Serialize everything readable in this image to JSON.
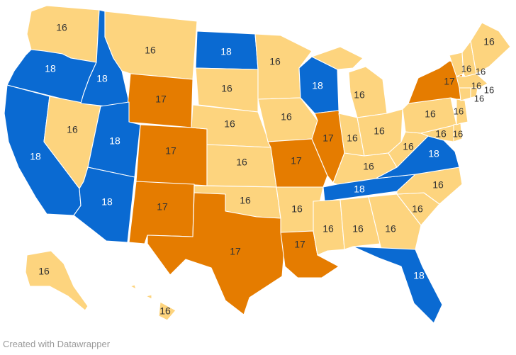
{
  "credit": "Created with Datawrapper",
  "colors": {
    "16": "#fdd47e",
    "17": "#e57c00",
    "18": "#0a6ad2"
  },
  "states": {
    "WA": "16",
    "OR": "18",
    "CA": "18",
    "NV": "16",
    "ID": "18",
    "MT": "16",
    "WY": "17",
    "UT": "18",
    "AZ": "18",
    "CO": "17",
    "NM": "17",
    "ND": "18",
    "SD": "16",
    "NE": "16",
    "KS": "16",
    "OK": "16",
    "TX": "17",
    "MN": "16",
    "IA": "16",
    "MO": "17",
    "AR": "16",
    "LA": "17",
    "WI": "18",
    "IL": "17",
    "MI": "16",
    "IN": "16",
    "OH": "16",
    "KY": "16",
    "TN": "18",
    "MS": "16",
    "AL": "16",
    "GA": "16",
    "FL": "18",
    "SC": "16",
    "NC": "16",
    "VA": "18",
    "WV": "16",
    "PA": "16",
    "NY": "17",
    "VT": "16",
    "NH": "16",
    "ME": "16",
    "MA": "16",
    "CT": "16",
    "RI": "16",
    "NJ": "16",
    "DE": "16",
    "MD": "16",
    "AK": "16",
    "HI": "16"
  }
}
